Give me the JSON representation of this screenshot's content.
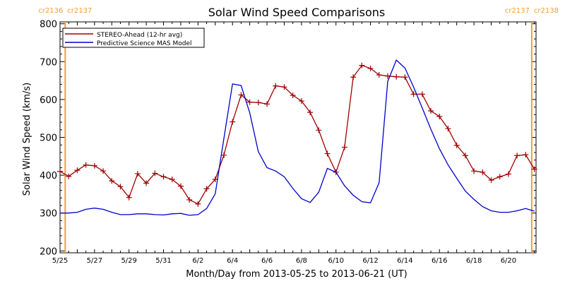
{
  "chart_data": {
    "type": "line",
    "title": "Solar Wind Speed Comparisons",
    "xlabel": "Month/Day from 2013-05-25 to 2013-06-21 (UT)",
    "ylabel": "Solar Wind Speed (km/s)",
    "xlim": [
      0,
      27.6
    ],
    "ylim": [
      195,
      805
    ],
    "legend_placement": "top-left",
    "grid": false,
    "yticks": [
      {
        "value": 200,
        "label": "200"
      },
      {
        "value": 300,
        "label": "300"
      },
      {
        "value": 400,
        "label": "400"
      },
      {
        "value": 500,
        "label": "500"
      },
      {
        "value": 600,
        "label": "600"
      },
      {
        "value": 700,
        "label": "700"
      },
      {
        "value": 800,
        "label": "800"
      }
    ],
    "xticks": [
      {
        "value": 0,
        "label": "5/25"
      },
      {
        "value": 2,
        "label": "5/27"
      },
      {
        "value": 4,
        "label": "5/29"
      },
      {
        "value": 6,
        "label": "5/31"
      },
      {
        "value": 8,
        "label": "6/2"
      },
      {
        "value": 10,
        "label": "6/4"
      },
      {
        "value": 12,
        "label": "6/6"
      },
      {
        "value": 14,
        "label": "6/8"
      },
      {
        "value": 16,
        "label": "6/10"
      },
      {
        "value": 18,
        "label": "6/12"
      },
      {
        "value": 20,
        "label": "6/14"
      },
      {
        "value": 22,
        "label": "6/16"
      },
      {
        "value": 24,
        "label": "6/18"
      },
      {
        "value": 26,
        "label": "6/20"
      }
    ],
    "rotation_markers": [
      {
        "x": 0.3,
        "left_label": "cr2136",
        "right_label": "cr2137",
        "color": "#f0a030"
      },
      {
        "x": 27.35,
        "left_label": "cr2137",
        "right_label": "cr2138",
        "color": "#f0a030"
      }
    ],
    "series": [
      {
        "name": "STEREO-Ahead (12-hr avg)",
        "color": "#a00000",
        "markers": true,
        "x": [
          0.0,
          0.5,
          1.0,
          1.5,
          2.0,
          2.5,
          3.0,
          3.5,
          4.0,
          4.5,
          5.0,
          5.5,
          6.0,
          6.5,
          7.0,
          7.5,
          8.0,
          8.5,
          9.0,
          9.5,
          10.0,
          10.5,
          11.0,
          11.5,
          12.0,
          12.5,
          13.0,
          13.5,
          14.0,
          14.5,
          15.0,
          15.5,
          16.0,
          16.5,
          17.0,
          17.5,
          18.0,
          18.5,
          19.0,
          19.5,
          20.0,
          20.5,
          21.0,
          21.5,
          22.0,
          22.5,
          23.0,
          23.5,
          24.0,
          24.5,
          25.0,
          25.5,
          26.0,
          26.5,
          27.0,
          27.5
        ],
        "y": [
          410,
          397,
          413,
          427,
          425,
          411,
          385,
          370,
          341,
          404,
          379,
          405,
          396,
          389,
          371,
          335,
          324,
          364,
          389,
          453,
          541,
          612,
          593,
          592,
          588,
          636,
          633,
          611,
          596,
          566,
          519,
          457,
          408,
          474,
          659,
          690,
          682,
          665,
          662,
          660,
          659,
          614,
          614,
          570,
          555,
          523,
          479,
          452,
          411,
          408,
          387,
          396,
          403,
          452,
          454,
          416
        ]
      },
      {
        "name": "Predictive Science MAS Model",
        "color": "#0000cc",
        "markers": false,
        "x": [
          0.0,
          0.5,
          1.0,
          1.5,
          2.0,
          2.5,
          3.0,
          3.5,
          4.0,
          4.5,
          5.0,
          5.5,
          6.0,
          6.5,
          7.0,
          7.5,
          8.0,
          8.5,
          9.0,
          9.5,
          10.0,
          10.5,
          11.0,
          11.5,
          12.0,
          12.5,
          13.0,
          13.5,
          14.0,
          14.5,
          15.0,
          15.5,
          16.0,
          16.5,
          17.0,
          17.5,
          18.0,
          18.5,
          19.0,
          19.5,
          20.0,
          20.5,
          21.0,
          21.5,
          22.0,
          22.5,
          23.0,
          23.5,
          24.0,
          24.5,
          25.0,
          25.5,
          26.0,
          26.5,
          27.0,
          27.5
        ],
        "y": [
          300,
          300,
          302,
          310,
          313,
          310,
          302,
          296,
          296,
          298,
          298,
          296,
          295,
          298,
          299,
          294,
          296,
          312,
          351,
          497,
          641,
          637,
          565,
          462,
          420,
          411,
          396,
          365,
          338,
          328,
          355,
          418,
          408,
          372,
          347,
          330,
          327,
          380,
          648,
          704,
          683,
          633,
          578,
          522,
          470,
          427,
          392,
          358,
          336,
          317,
          306,
          302,
          302,
          306,
          312,
          305
        ]
      }
    ]
  }
}
